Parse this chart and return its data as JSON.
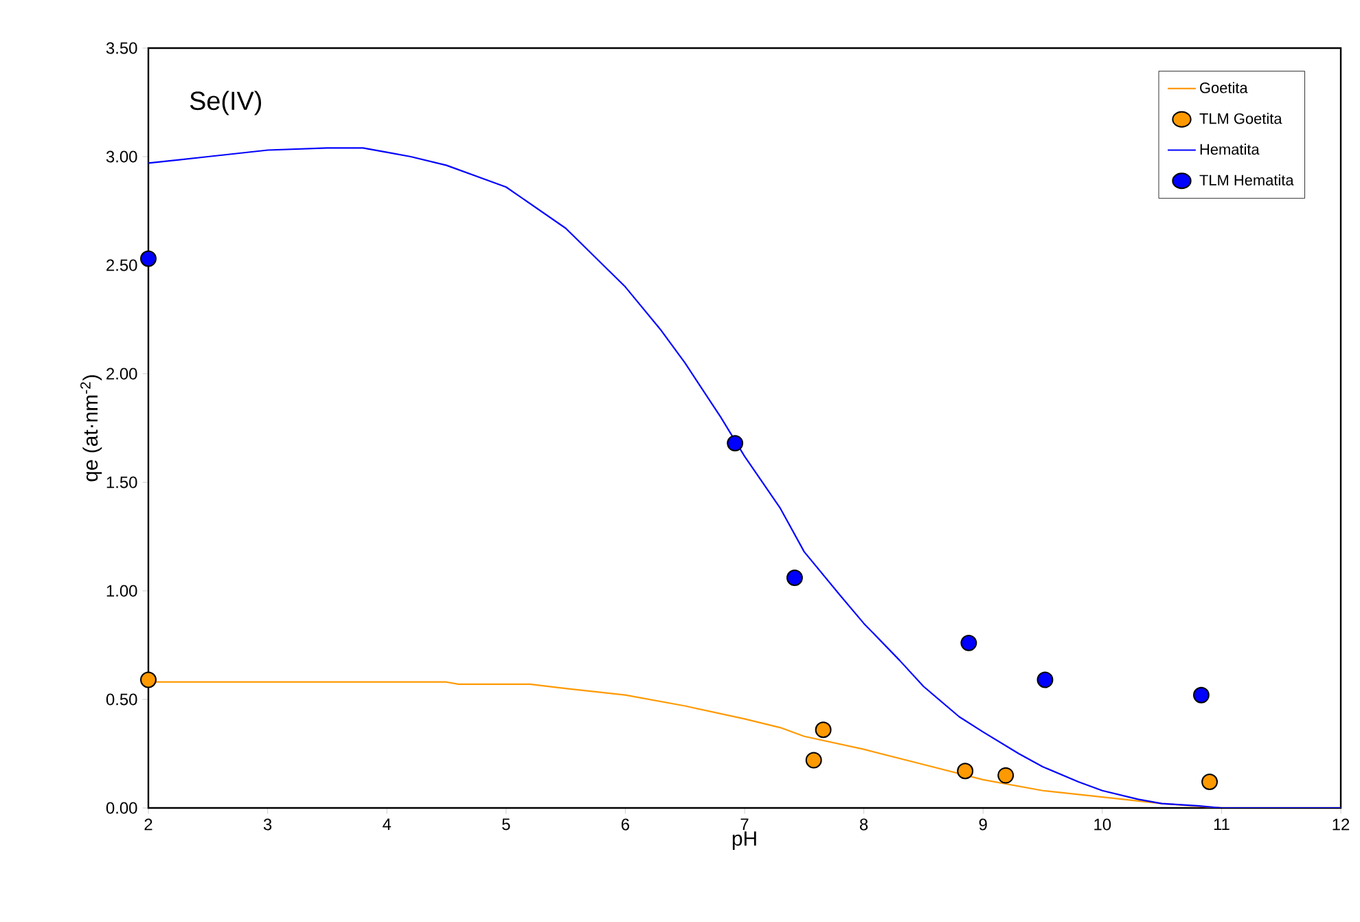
{
  "chart_data": {
    "type": "scatter",
    "xlabel": "pH",
    "ylabel": "qe (at·nm$^{-2}$)",
    "annotations": [
      "Se(IV)"
    ],
    "xlim": [
      2,
      12
    ],
    "xticks": [
      2,
      3,
      4,
      5,
      6,
      7,
      8,
      9,
      10,
      11,
      12
    ],
    "ylim": [
      0,
      3.5
    ],
    "yticks": [
      {
        "value": 0,
        "label": "0.00"
      },
      {
        "value": 0.5,
        "label": "0.50"
      },
      {
        "value": 1,
        "label": "1.00"
      },
      {
        "value": 1.5,
        "label": "1.50"
      },
      {
        "value": 2,
        "label": "2.00"
      },
      {
        "value": 2.5,
        "label": "2.50"
      },
      {
        "value": 3,
        "label": "3.00"
      },
      {
        "value": 3.5,
        "label": "3.50"
      }
    ],
    "grid": false,
    "legend": "top right",
    "line_style": "solid",
    "marker": "circle",
    "series": [
      {
        "name": "Goetita",
        "type": "line",
        "marker": "none",
        "color": "#ff9900",
        "x": [
          2,
          4.5,
          4.6,
          5.2,
          5.5,
          6,
          6.5,
          7,
          7.3,
          7.5,
          8,
          8.5,
          9,
          9.5,
          10,
          10.5,
          11
        ],
        "values": [
          0.58,
          0.58,
          0.57,
          0.57,
          0.55,
          0.52,
          0.47,
          0.41,
          0.37,
          0.33,
          0.27,
          0.2,
          0.13,
          0.08,
          0.05,
          0.02,
          0
        ]
      },
      {
        "name": "TLM Goetita",
        "color": "#ff9900",
        "x": [
          2.0,
          7.58,
          7.66,
          8.85,
          9.19,
          10.9
        ],
        "values": [
          0.59,
          0.22,
          0.36,
          0.17,
          0.15,
          0.12
        ]
      },
      {
        "name": "Hematita",
        "type": "line",
        "marker": "none",
        "color": "#0000ff",
        "x": [
          2,
          2.5,
          3,
          3.5,
          3.8,
          4,
          4.2,
          4.5,
          5,
          5.5,
          6,
          6.3,
          6.5,
          6.8,
          7,
          7.3,
          7.5,
          7.8,
          8,
          8.3,
          8.5,
          8.8,
          9,
          9.3,
          9.5,
          9.8,
          10,
          10.3,
          10.5,
          10.8,
          11,
          12
        ],
        "values": [
          2.97,
          3.0,
          3.03,
          3.04,
          3.04,
          3.02,
          3.0,
          2.96,
          2.86,
          2.67,
          2.4,
          2.2,
          2.05,
          1.8,
          1.62,
          1.38,
          1.18,
          0.98,
          0.85,
          0.68,
          0.56,
          0.42,
          0.35,
          0.25,
          0.19,
          0.12,
          0.08,
          0.04,
          0.02,
          0.01,
          0,
          0
        ]
      },
      {
        "name": "TLM Hematita",
        "color": "#0000ff",
        "x": [
          2.0,
          6.92,
          7.42,
          8.88,
          9.52,
          10.83
        ],
        "values": [
          2.53,
          1.68,
          1.06,
          0.76,
          0.59,
          0.52
        ]
      }
    ]
  }
}
